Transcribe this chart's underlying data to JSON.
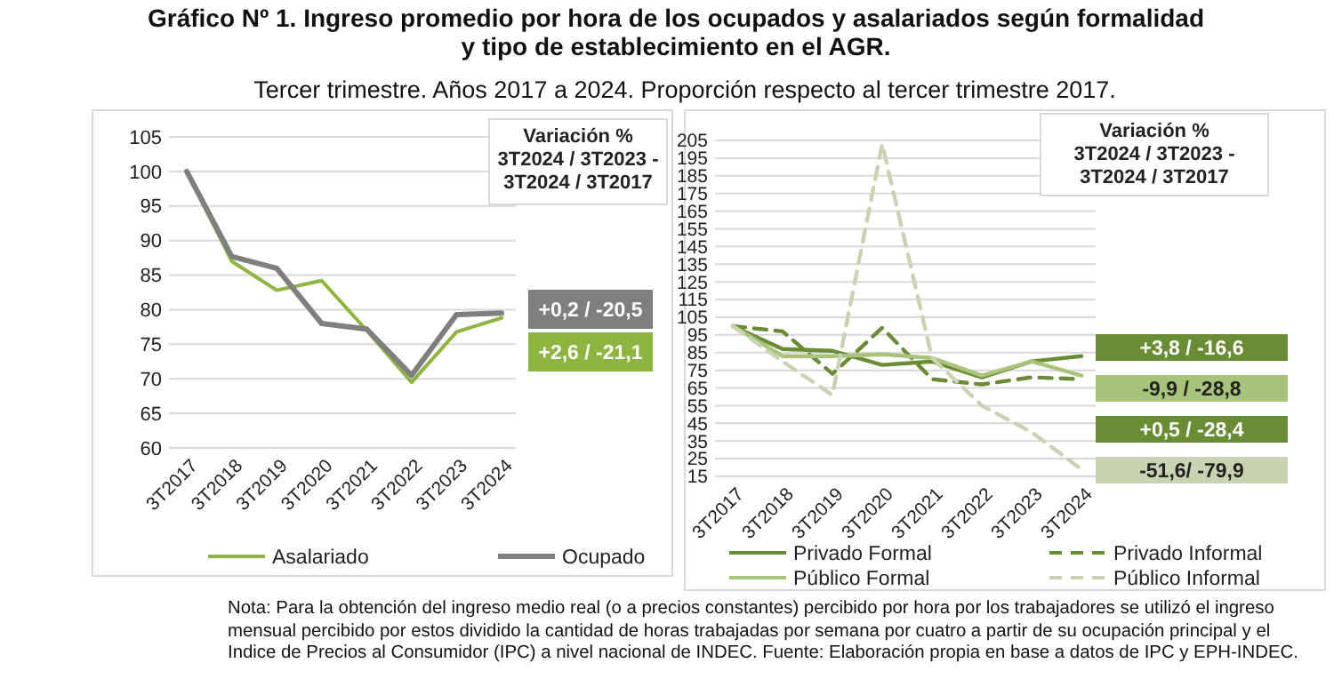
{
  "chart_data": [
    {
      "type": "line",
      "title": "Gráfico Nº 1. Ingreso promedio por hora de los ocupados y asalariados según formalidad y tipo de establecimiento en el AGR.",
      "subtitle": "Tercer trimestre. Años 2017 a 2024. Proporción respecto al tercer trimestre 2017.",
      "categories": [
        "3T2017",
        "3T2018",
        "3T2019",
        "3T2020",
        "3T2021",
        "3T2022",
        "3T2023",
        "3T2024"
      ],
      "series": [
        {
          "name": "Asalariado",
          "color": "#8db53f",
          "line_style": "solid",
          "values": [
            100,
            87,
            82.8,
            84.2,
            77,
            69.5,
            76.8,
            78.8
          ]
        },
        {
          "name": "Ocupado",
          "color": "#7f7f7f",
          "line_style": "solid",
          "values": [
            100,
            87.7,
            86,
            78,
            77.2,
            70.5,
            79.3,
            79.5
          ]
        }
      ],
      "ylim": [
        60,
        105
      ],
      "yticks": [
        60,
        65,
        70,
        75,
        80,
        85,
        90,
        95,
        100,
        105
      ],
      "grid": "y",
      "legend": "bottom",
      "marker": "none",
      "annotations": [
        "Variación %\n3T2024 / 3T2023 -\n3T2024 / 3T2017",
        "+0,2 / -20,5",
        "+2,6 / -21,1"
      ]
    },
    {
      "type": "line",
      "categories": [
        "3T2017",
        "3T2018",
        "3T2019",
        "3T2020",
        "3T2021",
        "3T2022",
        "3T2023",
        "3T2024"
      ],
      "series": [
        {
          "name": "Privado Formal",
          "color": "#6a8c34",
          "line_style": "solid",
          "values": [
            100,
            87,
            86,
            78,
            80,
            71,
            80,
            83
          ]
        },
        {
          "name": "Privado Informal",
          "color": "#6a8c34",
          "line_style": "dashed",
          "values": [
            100,
            97,
            73,
            99,
            70,
            67,
            71,
            70
          ]
        },
        {
          "name": "Público Formal",
          "color": "#a8c47a",
          "line_style": "solid",
          "values": [
            100,
            83,
            83,
            84,
            82,
            72,
            80,
            72
          ]
        },
        {
          "name": "Público Informal",
          "color": "#c9d3b2",
          "line_style": "dashed",
          "values": [
            100,
            80,
            61,
            203,
            82,
            55,
            40,
            19
          ]
        }
      ],
      "ylim": [
        15,
        205
      ],
      "yticks": [
        15,
        25,
        35,
        45,
        55,
        65,
        75,
        85,
        95,
        105,
        115,
        125,
        135,
        145,
        155,
        165,
        175,
        185,
        195,
        205
      ],
      "grid": "y",
      "legend": "bottom",
      "marker": "none",
      "annotations": [
        "Variación %\n3T2024 / 3T2023 -\n3T2024 / 3T2017",
        "+3,8 / -16,6",
        "-9,9 / -28,8",
        "+0,5 / -28,4",
        "-51,6/ -79,9",
        "Nota: Para la obtención del ingreso medio real (o a precios constantes) percibido por hora por los trabajadores se utilizó el ingreso mensual percibido por estos dividido la cantidad de horas trabajadas por semana por cuatro a partir de su ocupación principal y el Indice de Precios al Consumidor (IPC) a nivel nacional de INDEC. Fuente: Elaboración propia en base a datos de IPC y EPH-INDEC."
      ]
    }
  ]
}
